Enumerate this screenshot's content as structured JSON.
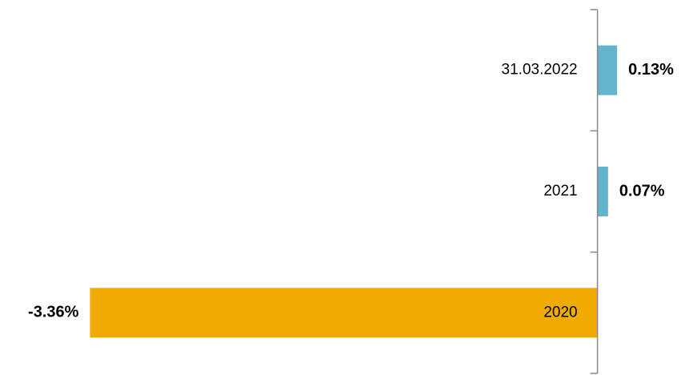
{
  "chart_data": {
    "type": "hbar",
    "categories": [
      "31.03.2022",
      "2021",
      "2020"
    ],
    "values": [
      0.13,
      0.07,
      -3.36
    ],
    "value_labels": [
      "0.13%",
      "0.07%",
      "-3.36%"
    ],
    "colors": [
      "#62b5cc",
      "#62b5cc",
      "#f0ab00"
    ],
    "xlim": [
      -3.5,
      0.5
    ]
  }
}
